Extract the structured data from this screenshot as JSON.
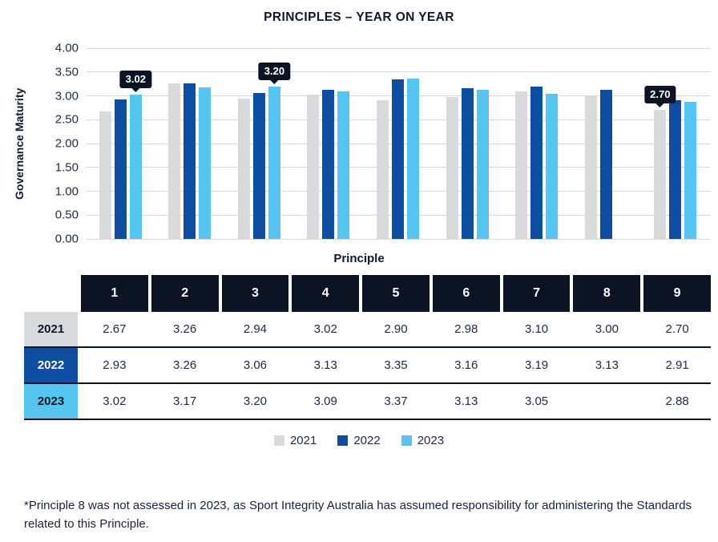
{
  "title": "PRINCIPLES – YEAR ON YEAR",
  "chart_data": {
    "type": "bar",
    "title": "PRINCIPLES – YEAR ON YEAR",
    "xlabel": "Principle",
    "ylabel": "Governance Maturity",
    "ylim": [
      0,
      4
    ],
    "yticks": [
      "4.00",
      "3.50",
      "3.00",
      "2.50",
      "2.00",
      "1.50",
      "1.00",
      "0.50",
      "0.00"
    ],
    "grid": true,
    "legend_position": "bottom",
    "categories": [
      "1",
      "2",
      "3",
      "4",
      "5",
      "6",
      "7",
      "8",
      "9"
    ],
    "series": [
      {
        "name": "2021",
        "color": "#d8dadc",
        "values": [
          2.67,
          3.26,
          2.94,
          3.02,
          2.9,
          2.98,
          3.1,
          3.0,
          2.7
        ]
      },
      {
        "name": "2022",
        "color": "#0d4da2",
        "values": [
          2.93,
          3.26,
          3.06,
          3.13,
          3.35,
          3.16,
          3.19,
          3.13,
          2.91
        ]
      },
      {
        "name": "2023",
        "color": "#55c6f2",
        "values": [
          3.02,
          3.17,
          3.2,
          3.09,
          3.37,
          3.13,
          3.05,
          null,
          2.88
        ]
      }
    ],
    "callouts": [
      {
        "category": "1",
        "series": "2023",
        "label": "3.02"
      },
      {
        "category": "3",
        "series": "2023",
        "label": "3.20"
      },
      {
        "category": "9",
        "series": "2021",
        "label": "2.70"
      }
    ]
  },
  "table": {
    "column_headers": [
      "1",
      "2",
      "3",
      "4",
      "5",
      "6",
      "7",
      "8",
      "9"
    ],
    "rows": [
      {
        "year": "2021",
        "header_bg": "#d8dadc",
        "header_color": "#10182b",
        "values": [
          "2.67",
          "3.26",
          "2.94",
          "3.02",
          "2.90",
          "2.98",
          "3.10",
          "3.00",
          "2.70"
        ]
      },
      {
        "year": "2022",
        "header_bg": "#0d4da2",
        "header_color": "#ffffff",
        "values": [
          "2.93",
          "3.26",
          "3.06",
          "3.13",
          "3.35",
          "3.16",
          "3.19",
          "3.13",
          "2.91"
        ]
      },
      {
        "year": "2023",
        "header_bg": "#55c6f2",
        "header_color": "#10182b",
        "values": [
          "3.02",
          "3.17",
          "3.20",
          "3.09",
          "3.37",
          "3.13",
          "3.05",
          "",
          "2.88"
        ]
      }
    ]
  },
  "legend": [
    {
      "label": "2021",
      "color": "#d8dadc"
    },
    {
      "label": "2022",
      "color": "#0d4da2"
    },
    {
      "label": "2023",
      "color": "#55c6f2"
    }
  ],
  "footnote": "*Principle 8 was not assessed in 2023, as Sport Integrity Australia has assumed responsibility for administering the Standards related to this Principle.",
  "colors": {
    "callout_bg": "#0c1322",
    "gridline": "#d9d9d9",
    "text": "#1b2339"
  }
}
